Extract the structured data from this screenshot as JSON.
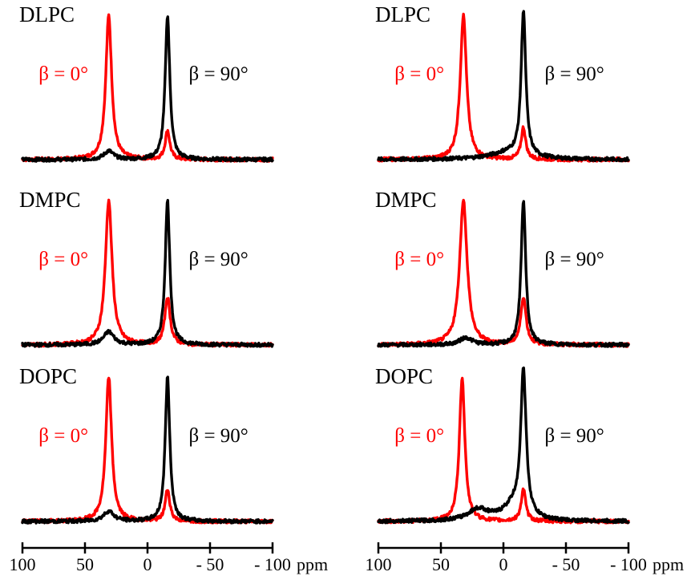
{
  "chart_data": [
    {
      "type": "line",
      "panel": "top-left",
      "label": "DLPC",
      "xlabel": "ppm",
      "xlim": [
        100,
        -100
      ],
      "series": [
        {
          "name": "β = 0°",
          "color": "#ff0000",
          "peaks": [
            {
              "x": 31,
              "height": 1.0,
              "width": 2.8
            },
            {
              "x": -16,
              "height": 0.2,
              "width": 2.2
            }
          ]
        },
        {
          "name": "β = 90°",
          "color": "#000000",
          "peaks": [
            {
              "x": -16,
              "height": 1.0,
              "width": 2.2
            },
            {
              "x": 31,
              "height": 0.06,
              "width": 4.5
            }
          ]
        }
      ]
    },
    {
      "type": "line",
      "panel": "top-right",
      "label": "DLPC",
      "xlabel": "ppm",
      "xlim": [
        100,
        -100
      ],
      "series": [
        {
          "name": "β = 0°",
          "color": "#ff0000",
          "peaks": [
            {
              "x": 32,
              "height": 1.0,
              "width": 3.0
            },
            {
              "x": -16,
              "height": 0.22,
              "width": 2.2
            }
          ]
        },
        {
          "name": "β = 90°",
          "color": "#000000",
          "peaks": [
            {
              "x": -16,
              "height": 1.0,
              "width": 2.2
            },
            {
              "x": -5,
              "height": 0.05,
              "width": 18
            }
          ]
        }
      ]
    },
    {
      "type": "line",
      "panel": "middle-left",
      "label": "DMPC",
      "xlabel": "ppm",
      "xlim": [
        100,
        -100
      ],
      "series": [
        {
          "name": "β = 0°",
          "color": "#ff0000",
          "peaks": [
            {
              "x": 31,
              "height": 1.0,
              "width": 3.2
            },
            {
              "x": -16,
              "height": 0.33,
              "width": 2.5
            }
          ]
        },
        {
          "name": "β = 90°",
          "color": "#000000",
          "peaks": [
            {
              "x": -16,
              "height": 1.0,
              "width": 2.2
            },
            {
              "x": 31,
              "height": 0.09,
              "width": 5
            }
          ]
        }
      ]
    },
    {
      "type": "line",
      "panel": "middle-right",
      "label": "DMPC",
      "xlabel": "ppm",
      "xlim": [
        100,
        -100
      ],
      "series": [
        {
          "name": "β = 0°",
          "color": "#ff0000",
          "peaks": [
            {
              "x": 32,
              "height": 1.0,
              "width": 3.6
            },
            {
              "x": -16,
              "height": 0.33,
              "width": 2.5
            }
          ]
        },
        {
          "name": "β = 90°",
          "color": "#000000",
          "peaks": [
            {
              "x": -16,
              "height": 1.0,
              "width": 2.2
            },
            {
              "x": 30,
              "height": 0.05,
              "width": 6
            }
          ]
        }
      ]
    },
    {
      "type": "line",
      "panel": "bottom-left",
      "label": "DOPC",
      "xlabel": "ppm",
      "xlim": [
        100,
        -100
      ],
      "series": [
        {
          "name": "β = 0°",
          "color": "#ff0000",
          "peaks": [
            {
              "x": 31,
              "height": 1.0,
              "width": 2.8
            },
            {
              "x": -16,
              "height": 0.22,
              "width": 2.2
            }
          ]
        },
        {
          "name": "β = 90°",
          "color": "#000000",
          "peaks": [
            {
              "x": -16,
              "height": 1.0,
              "width": 2.2
            },
            {
              "x": 31,
              "height": 0.07,
              "width": 5
            }
          ]
        }
      ]
    },
    {
      "type": "line",
      "panel": "bottom-right",
      "label": "DOPC",
      "xlabel": "ppm",
      "xlim": [
        100,
        -100
      ],
      "series": [
        {
          "name": "β = 0°",
          "color": "#ff0000",
          "peaks": [
            {
              "x": 33,
              "height": 1.0,
              "width": 2.6
            },
            {
              "x": -16,
              "height": 0.22,
              "width": 2.2
            }
          ]
        },
        {
          "name": "β = 90°",
          "color": "#000000",
          "peaks": [
            {
              "x": -16,
              "height": 1.0,
              "width": 2.6
            },
            {
              "x": -8,
              "height": 0.1,
              "width": 10
            },
            {
              "x": 20,
              "height": 0.08,
              "width": 10
            }
          ]
        }
      ]
    }
  ],
  "axis": {
    "ticks": [
      100,
      50,
      0,
      -50,
      -100
    ],
    "tick_labels": [
      "100",
      "50",
      "0",
      "- 50",
      "- 100"
    ],
    "unit": "ppm"
  }
}
